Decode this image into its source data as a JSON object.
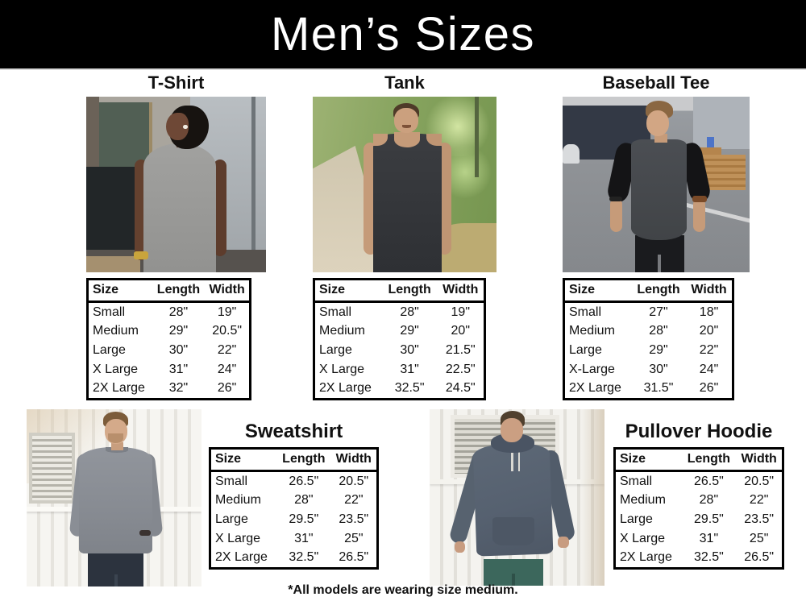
{
  "title": "Men’s Sizes",
  "footer_note": "*All models are wearing size medium.",
  "colors": {
    "banner_bg": "#000000",
    "banner_text": "#ffffff",
    "heading_text": "#111111",
    "table_border": "#000000",
    "table_bg": "#ffffff"
  },
  "sections": [
    {
      "name": "T-Shirt",
      "photo": "man with dreadlocks wearing gray t-shirt outside industrial building",
      "table": {
        "headers": [
          "Size",
          "Length",
          "Width"
        ],
        "rows": [
          [
            "Small",
            "28\"",
            "19\""
          ],
          [
            "Medium",
            "29\"",
            "20.5\""
          ],
          [
            "Large",
            "30\"",
            "22\""
          ],
          [
            "X Large",
            "31\"",
            "24\""
          ],
          [
            "2X Large",
            "32\"",
            "26\""
          ]
        ]
      }
    },
    {
      "name": "Tank",
      "photo": "smiling man wearing black tank top on wooded path",
      "table": {
        "headers": [
          "Size",
          "Length",
          "Width"
        ],
        "rows": [
          [
            "Small",
            "28\"",
            "19\""
          ],
          [
            "Medium",
            "29\"",
            "20\""
          ],
          [
            "Large",
            "30\"",
            "21.5\""
          ],
          [
            "X Large",
            "31\"",
            "22.5\""
          ],
          [
            "2X Large",
            "32.5\"",
            "24.5\""
          ]
        ]
      }
    },
    {
      "name": "Baseball Tee",
      "photo": "man wearing charcoal baseball tee with black sleeves in parking lot",
      "table": {
        "headers": [
          "Size",
          "Length",
          "Width"
        ],
        "rows": [
          [
            "Small",
            "27\"",
            "18\""
          ],
          [
            "Medium",
            "28\"",
            "20\""
          ],
          [
            "Large",
            "29\"",
            "22\""
          ],
          [
            "X-Large",
            "30\"",
            "24\""
          ],
          [
            "2X Large",
            "31.5\"",
            "26\""
          ]
        ]
      }
    },
    {
      "name": "Sweatshirt",
      "photo": "man wearing gray crewneck sweatshirt by white corrugated wall",
      "table": {
        "headers": [
          "Size",
          "Length",
          "Width"
        ],
        "rows": [
          [
            "Small",
            "26.5\"",
            "20.5\""
          ],
          [
            "Medium",
            "28\"",
            "22\""
          ],
          [
            "Large",
            "29.5\"",
            "23.5\""
          ],
          [
            "X Large",
            "31\"",
            "25\""
          ],
          [
            "2X Large",
            "32.5\"",
            "26.5\""
          ]
        ]
      }
    },
    {
      "name": "Pullover Hoodie",
      "photo": "man wearing slate blue pullover hoodie leaning on white corrugated wall",
      "table": {
        "headers": [
          "Size",
          "Length",
          "Width"
        ],
        "rows": [
          [
            "Small",
            "26.5\"",
            "20.5\""
          ],
          [
            "Medium",
            "28\"",
            "22\""
          ],
          [
            "Large",
            "29.5\"",
            "23.5\""
          ],
          [
            "X Large",
            "31\"",
            "25\""
          ],
          [
            "2X Large",
            "32.5\"",
            "26.5\""
          ]
        ]
      }
    }
  ]
}
